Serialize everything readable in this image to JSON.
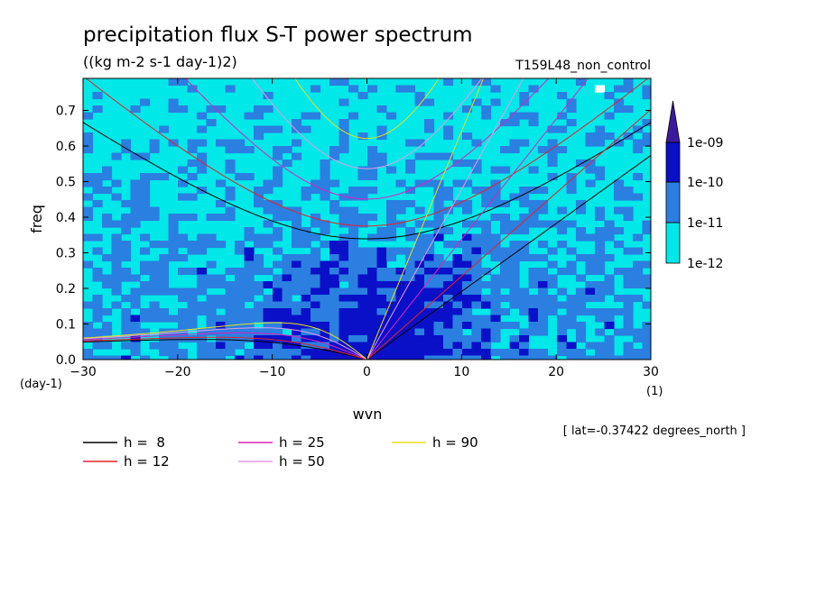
{
  "chart_data": {
    "type": "heatmap",
    "title": "precipitation flux S-T power spectrum",
    "subtitle": "((kg m-2 s-1 day-1)2)",
    "run_label": "T159L48_non_control",
    "xlabel": "wvn",
    "ylabel": "freq",
    "x_unit": "(1)",
    "y_unit": "(day-1)",
    "xlim": [
      -30,
      30
    ],
    "ylim": [
      0,
      0.79
    ],
    "x_ticks": [
      "−30",
      "−20",
      "−10",
      "0",
      "10",
      "20",
      "30"
    ],
    "x_tick_values": [
      -30,
      -20,
      -10,
      0,
      10,
      20,
      30
    ],
    "y_ticks": [
      "0.0",
      "0.1",
      "0.2",
      "0.3",
      "0.4",
      "0.5",
      "0.6",
      "0.7"
    ],
    "y_tick_values": [
      0.0,
      0.1,
      0.2,
      0.3,
      0.4,
      0.5,
      0.6,
      0.7
    ],
    "footnote": "[ lat=-0.37422 degrees_north ]",
    "colorbar": {
      "labels": [
        "1e-12",
        "1e-11",
        "1e-10",
        "1e-09"
      ],
      "bands": [
        {
          "from": "1e-12",
          "to": "1e-11",
          "color": "#00e8e8"
        },
        {
          "from": "1e-11",
          "to": "1e-10",
          "color": "#2a7fe0"
        },
        {
          "from": "1e-10",
          "to": "1e-09",
          "color": "#0a10c8"
        },
        {
          "from": "1e-09",
          "to": "",
          "color": "#3b1a9e"
        }
      ],
      "below_color": "#ffffff"
    },
    "dispersion_curves": [
      {
        "name": "h =  8",
        "h": 8,
        "color": "#000000"
      },
      {
        "name": "h = 12",
        "h": 12,
        "color": "#e8202a"
      },
      {
        "name": "h = 25",
        "h": 25,
        "color": "#e020c0"
      },
      {
        "name": "h = 50",
        "h": 50,
        "color": "#e89ae8"
      },
      {
        "name": "h = 90",
        "h": 90,
        "color": "#e8e020"
      }
    ],
    "legend_placement": "below-left",
    "grid": false
  }
}
